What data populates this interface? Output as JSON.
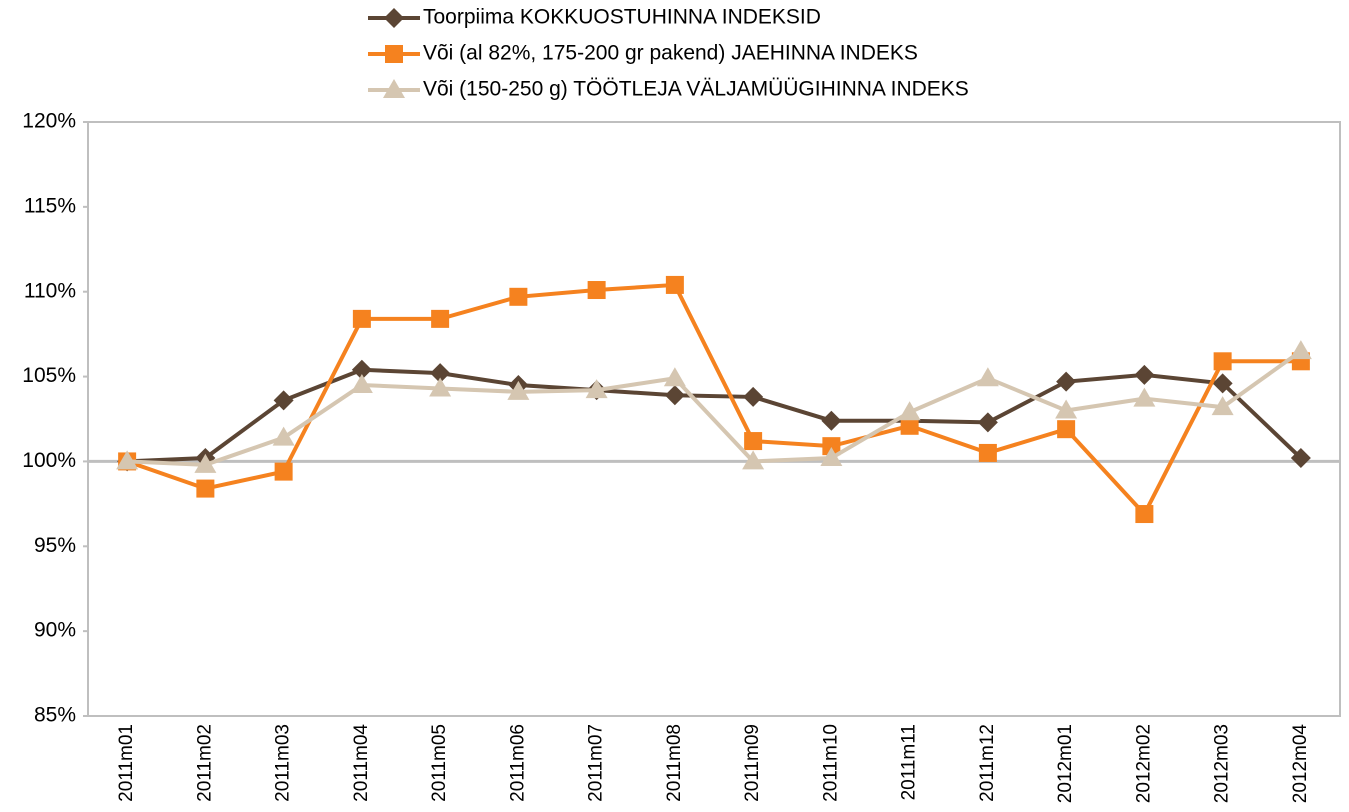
{
  "chart_data": {
    "type": "line",
    "categories": [
      "2011m01",
      "2011m02",
      "2011m03",
      "2011m04",
      "2011m05",
      "2011m06",
      "2011m07",
      "2011m08",
      "2011m09",
      "2011m10",
      "2011m11",
      "2011m12",
      "2012m01",
      "2012m02",
      "2012m03",
      "2012m04"
    ],
    "series": [
      {
        "name": "Toorpiima KOKKUOSTUHINNA INDEKSID",
        "color": "#5b4534",
        "marker": "diamond",
        "values": [
          100,
          100.2,
          103.6,
          105.4,
          105.2,
          104.5,
          104.2,
          103.9,
          103.8,
          102.4,
          102.4,
          102.3,
          104.7,
          105.1,
          104.6,
          100.2
        ]
      },
      {
        "name": "Või (al 82%, 175-200 gr pakend) JAEHINNA INDEKS",
        "color": "#f5821f",
        "marker": "square",
        "values": [
          100,
          98.4,
          99.4,
          108.4,
          108.4,
          109.7,
          110.1,
          110.4,
          101.2,
          100.9,
          102.1,
          100.5,
          101.9,
          96.9,
          105.9,
          105.9
        ]
      },
      {
        "name": "Või (150-250 g) TÖÖTLEJA VÄLJAMÜÜGIHINNA INDEKS",
        "color": "#d5c6b1",
        "marker": "triangle",
        "values": [
          100,
          99.8,
          101.4,
          104.5,
          104.3,
          104.1,
          104.2,
          104.9,
          100,
          100.2,
          102.9,
          104.9,
          103,
          103.7,
          103.2,
          106.5
        ]
      }
    ],
    "ylim": [
      85,
      120
    ],
    "yticks": [
      {
        "value": 85,
        "label": "85%"
      },
      {
        "value": 90,
        "label": "90%"
      },
      {
        "value": 95,
        "label": "95%"
      },
      {
        "value": 100,
        "label": "100%"
      },
      {
        "value": 105,
        "label": "105%"
      },
      {
        "value": 110,
        "label": "110%"
      },
      {
        "value": 115,
        "label": "115%"
      },
      {
        "value": 120,
        "label": "120%"
      }
    ],
    "x_axis_crosses": 100,
    "legend": "top"
  }
}
